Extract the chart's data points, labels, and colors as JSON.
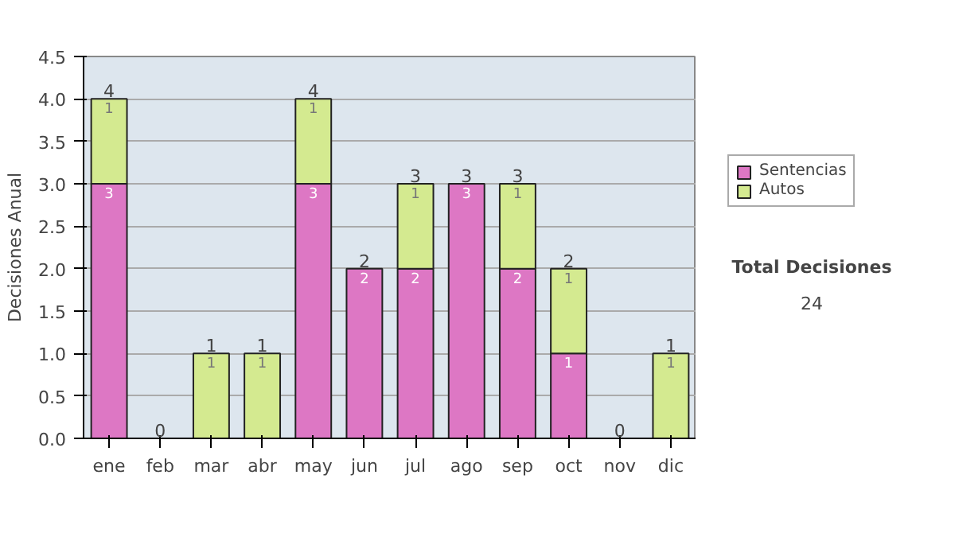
{
  "chart_data": {
    "type": "bar",
    "stacked": true,
    "ylabel": "Decisiones Anual",
    "categories": [
      "ene",
      "feb",
      "mar",
      "abr",
      "may",
      "jun",
      "jul",
      "ago",
      "sep",
      "oct",
      "nov",
      "dic"
    ],
    "series": [
      {
        "name": "Sentencias",
        "color": "#dd77c4",
        "values": [
          3,
          0,
          0,
          0,
          3,
          2,
          2,
          3,
          2,
          1,
          0,
          0
        ],
        "value_labels": [
          "3",
          null,
          null,
          null,
          "3",
          "2",
          "2",
          "3",
          "2",
          "1",
          null,
          null
        ]
      },
      {
        "name": "Autos",
        "color": "#d4ea90",
        "values": [
          1,
          0,
          1,
          1,
          1,
          0,
          1,
          0,
          1,
          1,
          0,
          1
        ],
        "value_labels": [
          "1",
          null,
          "1",
          "1",
          "1",
          null,
          "1",
          null,
          "1",
          "1",
          null,
          "1"
        ]
      }
    ],
    "totals": [
      "4",
      "0",
      "1",
      "1",
      "4",
      "2",
      "3",
      "3",
      "3",
      "2",
      "0",
      "1"
    ],
    "ylim": [
      0,
      4.5
    ],
    "yticks": [
      {
        "value": 0,
        "label": "0.0"
      },
      {
        "value": 0.5,
        "label": "0.5"
      },
      {
        "value": 1,
        "label": "1.0"
      },
      {
        "value": 1.5,
        "label": "1.5"
      },
      {
        "value": 2,
        "label": "2.0"
      },
      {
        "value": 2.5,
        "label": "2.5"
      },
      {
        "value": 3,
        "label": "3.0"
      },
      {
        "value": 3.5,
        "label": "3.5"
      },
      {
        "value": 4,
        "label": "4.0"
      },
      {
        "value": 4.5,
        "label": "4.5"
      }
    ],
    "grid": "y",
    "legend": "right",
    "annotations": [
      "Total Decisiones",
      "24"
    ]
  }
}
